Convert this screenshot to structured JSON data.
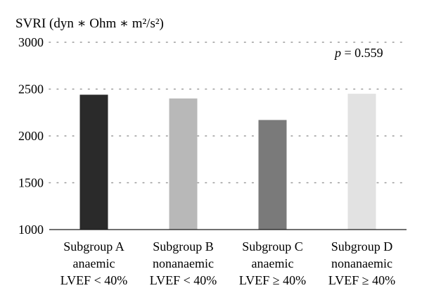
{
  "chart_data": {
    "type": "bar",
    "ylabel": "SVRI (dyn ∗ Ohm ∗ m²/s²)",
    "ylim": [
      1000,
      3000
    ],
    "yticks": [
      1000,
      1500,
      2000,
      2500,
      3000
    ],
    "grid": "horizontal-dotted",
    "categories": [
      [
        "Subgroup A",
        "anaemic",
        "LVEF < 40%"
      ],
      [
        "Subgroup B",
        "nonanaemic",
        "LVEF < 40%"
      ],
      [
        "Subgroup C",
        "anaemic",
        "LVEF ≥ 40%"
      ],
      [
        "Subgroup D",
        "nonanaemic",
        "LVEF ≥ 40%"
      ]
    ],
    "values": [
      2440,
      2400,
      2170,
      2450
    ],
    "colors": [
      "#2a2a2a",
      "#b8b8b8",
      "#7a7a7a",
      "#e2e2e2"
    ],
    "annotation": {
      "p_label": "p",
      "p_text": " = 0.559"
    }
  }
}
